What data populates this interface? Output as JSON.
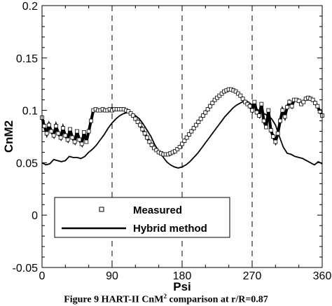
{
  "chart_data": {
    "type": "line",
    "xlabel": "Psi",
    "ylabel": "CnM2",
    "xlim": [
      0,
      360
    ],
    "ylim": [
      -0.05,
      0.2
    ],
    "x_ticks": [
      "0",
      "90",
      "180",
      "270",
      "360"
    ],
    "y_ticks": [
      "-0.05",
      "0",
      "0.05",
      "0.1",
      "0.15",
      "0.2"
    ],
    "vertical_reference_lines": [
      90,
      180,
      270
    ],
    "grid": false,
    "legend_position": "bottom-left",
    "series": [
      {
        "name": "Measured",
        "style": "markers",
        "marker": "open-square",
        "x": [
          0,
          3,
          6,
          9,
          12,
          15,
          18,
          21,
          24,
          27,
          30,
          33,
          36,
          39,
          42,
          45,
          48,
          51,
          54,
          57,
          60,
          63,
          66,
          69,
          72,
          75,
          78,
          81,
          84,
          87,
          90,
          93,
          96,
          99,
          102,
          105,
          108,
          111,
          114,
          117,
          120,
          123,
          126,
          129,
          132,
          135,
          138,
          141,
          144,
          147,
          150,
          153,
          156,
          159,
          162,
          165,
          168,
          171,
          174,
          177,
          180,
          183,
          186,
          189,
          192,
          195,
          198,
          201,
          204,
          207,
          210,
          213,
          216,
          219,
          222,
          225,
          228,
          231,
          234,
          237,
          240,
          243,
          246,
          249,
          252,
          255,
          258,
          261,
          264,
          267,
          270,
          273,
          276,
          279,
          282,
          285,
          288,
          291,
          294,
          297,
          300,
          303,
          306,
          309,
          312,
          315,
          318,
          321,
          324,
          327,
          330,
          333,
          336,
          339,
          342,
          345,
          348,
          351,
          354,
          357,
          360
        ],
        "y": [
          0.093,
          0.085,
          0.078,
          0.086,
          0.08,
          0.076,
          0.085,
          0.078,
          0.074,
          0.083,
          0.076,
          0.072,
          0.082,
          0.074,
          0.07,
          0.08,
          0.072,
          0.068,
          0.079,
          0.07,
          0.08,
          0.09,
          0.1,
          0.101,
          0.1,
          0.1,
          0.101,
          0.1,
          0.1,
          0.101,
          0.1,
          0.101,
          0.101,
          0.101,
          0.101,
          0.101,
          0.1,
          0.099,
          0.097,
          0.095,
          0.092,
          0.089,
          0.086,
          0.082,
          0.078,
          0.074,
          0.07,
          0.067,
          0.064,
          0.062,
          0.06,
          0.059,
          0.058,
          0.058,
          0.058,
          0.059,
          0.06,
          0.061,
          0.063,
          0.065,
          0.068,
          0.071,
          0.074,
          0.077,
          0.08,
          0.083,
          0.086,
          0.089,
          0.092,
          0.095,
          0.098,
          0.101,
          0.104,
          0.107,
          0.11,
          0.112,
          0.114,
          0.116,
          0.118,
          0.119,
          0.12,
          0.12,
          0.119,
          0.118,
          0.116,
          0.114,
          0.111,
          0.108,
          0.106,
          0.104,
          0.1,
          0.108,
          0.098,
          0.095,
          0.106,
          0.09,
          0.084,
          0.1,
          0.081,
          0.075,
          0.07,
          0.078,
          0.09,
          0.1,
          0.094,
          0.103,
          0.108,
          0.104,
          0.11,
          0.11,
          0.109,
          0.106,
          0.108,
          0.111,
          0.112,
          0.111,
          0.11,
          0.107,
          0.104,
          0.099,
          0.095
        ]
      },
      {
        "name": "Hybrid method",
        "style": "line",
        "x": [
          0,
          5,
          10,
          15,
          20,
          25,
          30,
          35,
          40,
          45,
          50,
          55,
          60,
          65,
          70,
          75,
          80,
          85,
          90,
          95,
          100,
          105,
          110,
          115,
          120,
          125,
          130,
          135,
          140,
          145,
          150,
          155,
          160,
          165,
          170,
          175,
          180,
          185,
          190,
          195,
          200,
          205,
          210,
          215,
          220,
          225,
          230,
          235,
          240,
          245,
          250,
          255,
          260,
          265,
          270,
          275,
          280,
          285,
          290,
          295,
          300,
          305,
          310,
          315,
          320,
          325,
          330,
          335,
          340,
          345,
          350,
          355,
          360
        ],
        "y": [
          0.05,
          0.048,
          0.049,
          0.053,
          0.052,
          0.051,
          0.052,
          0.056,
          0.055,
          0.055,
          0.054,
          0.056,
          0.06,
          0.063,
          0.067,
          0.072,
          0.077,
          0.083,
          0.088,
          0.092,
          0.095,
          0.097,
          0.098,
          0.097,
          0.095,
          0.092,
          0.087,
          0.081,
          0.075,
          0.067,
          0.061,
          0.056,
          0.051,
          0.048,
          0.046,
          0.045,
          0.046,
          0.048,
          0.051,
          0.055,
          0.059,
          0.064,
          0.069,
          0.074,
          0.079,
          0.084,
          0.089,
          0.094,
          0.098,
          0.102,
          0.105,
          0.107,
          0.109,
          0.108,
          0.105,
          0.102,
          0.099,
          0.097,
          0.095,
          0.092,
          0.086,
          0.075,
          0.065,
          0.059,
          0.058,
          0.056,
          0.055,
          0.054,
          0.052,
          0.05,
          0.048,
          0.051,
          0.049
        ]
      }
    ]
  },
  "legend": {
    "measured": "Measured",
    "hybrid": "Hybrid method"
  },
  "caption": {
    "prefix": "Figure 9 HART-II CnM",
    "sup": "2",
    "suffix": " comparison at r/R=0.87"
  }
}
